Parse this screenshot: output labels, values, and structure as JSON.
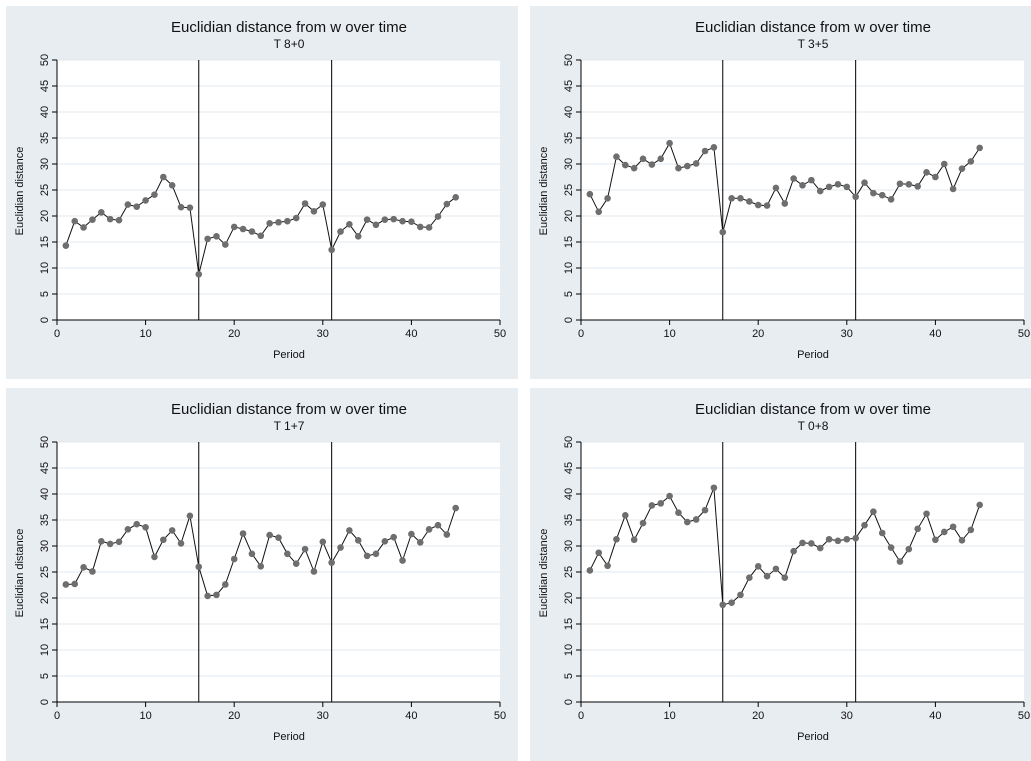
{
  "colors": {
    "panel_bg": "#e8edf2",
    "plot_bg": "#ffffff",
    "grid": "#e3e8ec",
    "marker": "#6e6e6e",
    "line": "#111111"
  },
  "chart_data": [
    {
      "type": "line",
      "title": "Euclidian distance from w over time",
      "subtitle": "T 8+0",
      "xlabel": "Period",
      "ylabel": "Euclidian distance",
      "xlim": [
        0,
        50
      ],
      "ylim": [
        0,
        50
      ],
      "xticks": [
        0,
        10,
        20,
        30,
        40,
        50
      ],
      "yticks": [
        0,
        5,
        10,
        15,
        20,
        25,
        30,
        35,
        40,
        45,
        50
      ],
      "vlines": [
        16,
        31
      ],
      "grid": true,
      "series": [
        {
          "x": [
            1,
            2,
            3,
            4,
            5,
            6,
            7,
            8,
            9,
            10,
            11,
            12,
            13,
            14,
            15,
            16,
            17,
            18,
            19,
            20,
            21,
            22,
            23,
            24,
            25,
            26,
            27,
            28,
            29,
            30,
            31,
            32,
            33,
            34,
            35,
            36,
            37,
            38,
            39,
            40,
            41,
            42,
            43,
            44,
            45
          ],
          "values": [
            14.3,
            19,
            17.8,
            19.3,
            20.7,
            19.4,
            19.2,
            22.2,
            21.8,
            23,
            24.1,
            27.5,
            25.9,
            21.7,
            21.6,
            8.8,
            15.6,
            16.1,
            14.5,
            17.9,
            17.5,
            17,
            16.2,
            18.6,
            18.8,
            19,
            19.6,
            22.4,
            20.9,
            22.2,
            13.5,
            17,
            18.4,
            16.1,
            19.3,
            18.3,
            19.3,
            19.4,
            19,
            18.9,
            17.9,
            17.8,
            19.9,
            22.3,
            23.6
          ]
        }
      ]
    },
    {
      "type": "line",
      "title": "Euclidian distance from w over time",
      "subtitle": "T 3+5",
      "xlabel": "Period",
      "ylabel": "Euclidian distance",
      "xlim": [
        0,
        50
      ],
      "ylim": [
        0,
        50
      ],
      "xticks": [
        0,
        10,
        20,
        30,
        40,
        50
      ],
      "yticks": [
        0,
        5,
        10,
        15,
        20,
        25,
        30,
        35,
        40,
        45,
        50
      ],
      "vlines": [
        16,
        31
      ],
      "grid": true,
      "series": [
        {
          "x": [
            1,
            2,
            3,
            4,
            5,
            6,
            7,
            8,
            9,
            10,
            11,
            12,
            13,
            14,
            15,
            16,
            17,
            18,
            19,
            20,
            21,
            22,
            23,
            24,
            25,
            26,
            27,
            28,
            29,
            30,
            31,
            32,
            33,
            34,
            35,
            36,
            37,
            38,
            39,
            40,
            41,
            42,
            43,
            44,
            45
          ],
          "values": [
            24.2,
            20.8,
            23.4,
            31.4,
            29.8,
            29.2,
            31,
            29.9,
            31,
            34,
            29.2,
            29.6,
            30.1,
            32.5,
            33.2,
            16.9,
            23.4,
            23.4,
            22.8,
            22.1,
            22,
            25.4,
            22.4,
            27.2,
            25.9,
            26.9,
            24.8,
            25.6,
            26.1,
            25.6,
            23.7,
            26.4,
            24.4,
            24,
            23.2,
            26.2,
            26.1,
            25.7,
            28.4,
            27.5,
            30,
            25.2,
            29.1,
            30.5,
            33.1
          ]
        }
      ]
    },
    {
      "type": "line",
      "title": "Euclidian distance from w over time",
      "subtitle": "T 1+7",
      "xlabel": "Period",
      "ylabel": "Euclidian distance",
      "xlim": [
        0,
        50
      ],
      "ylim": [
        0,
        50
      ],
      "xticks": [
        0,
        10,
        20,
        30,
        40,
        50
      ],
      "yticks": [
        0,
        5,
        10,
        15,
        20,
        25,
        30,
        35,
        40,
        45,
        50
      ],
      "vlines": [
        16,
        31
      ],
      "grid": true,
      "series": [
        {
          "x": [
            1,
            2,
            3,
            4,
            5,
            6,
            7,
            8,
            9,
            10,
            11,
            12,
            13,
            14,
            15,
            16,
            17,
            18,
            19,
            20,
            21,
            22,
            23,
            24,
            25,
            26,
            27,
            28,
            29,
            30,
            31,
            32,
            33,
            34,
            35,
            36,
            37,
            38,
            39,
            40,
            41,
            42,
            43,
            44,
            45
          ],
          "values": [
            22.6,
            22.7,
            25.9,
            25.1,
            30.9,
            30.4,
            30.8,
            33.2,
            34.2,
            33.6,
            27.9,
            31.2,
            33,
            30.5,
            35.8,
            26,
            20.4,
            20.6,
            22.6,
            27.5,
            32.4,
            28.5,
            26.1,
            32.1,
            31.6,
            28.5,
            26.6,
            29.4,
            25.1,
            30.8,
            26.8,
            29.7,
            33,
            31.1,
            28.1,
            28.5,
            30.9,
            31.7,
            27.2,
            32.3,
            30.7,
            33.2,
            34,
            32.2,
            37.3
          ]
        }
      ]
    },
    {
      "type": "line",
      "title": "Euclidian distance from w over time",
      "subtitle": "T 0+8",
      "xlabel": "Period",
      "ylabel": "Euclidian distance",
      "xlim": [
        0,
        50
      ],
      "ylim": [
        0,
        50
      ],
      "xticks": [
        0,
        10,
        20,
        30,
        40,
        50
      ],
      "yticks": [
        0,
        5,
        10,
        15,
        20,
        25,
        30,
        35,
        40,
        45,
        50
      ],
      "vlines": [
        16,
        31
      ],
      "grid": true,
      "series": [
        {
          "x": [
            1,
            2,
            3,
            4,
            5,
            6,
            7,
            8,
            9,
            10,
            11,
            12,
            13,
            14,
            15,
            16,
            17,
            18,
            19,
            20,
            21,
            22,
            23,
            24,
            25,
            26,
            27,
            28,
            29,
            30,
            31,
            32,
            33,
            34,
            35,
            36,
            37,
            38,
            39,
            40,
            41,
            42,
            43,
            44,
            45
          ],
          "values": [
            25.3,
            28.7,
            26.2,
            31.3,
            35.9,
            31.2,
            34.4,
            37.8,
            38.2,
            39.6,
            36.4,
            34.6,
            35.1,
            36.9,
            41.2,
            18.7,
            19.1,
            20.6,
            23.9,
            26.1,
            24.2,
            25.6,
            23.9,
            29,
            30.6,
            30.5,
            29.6,
            31.3,
            31,
            31.3,
            31.5,
            34,
            36.6,
            32.5,
            29.7,
            27,
            29.4,
            33.3,
            36.2,
            31.2,
            32.7,
            33.7,
            31.1,
            33.1,
            37.9
          ]
        }
      ]
    }
  ]
}
